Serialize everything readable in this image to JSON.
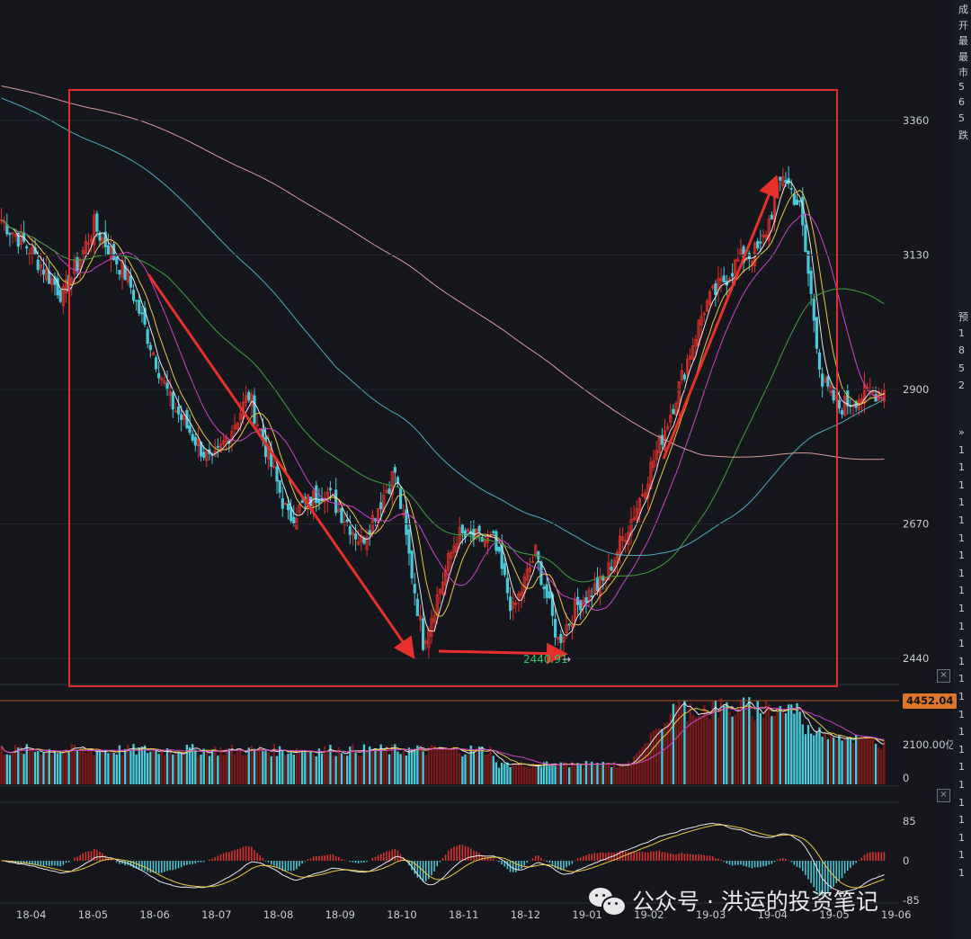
{
  "chart_data": [
    {
      "type": "candlestick",
      "panel": "price",
      "title": "",
      "x_ticks": [
        "18-04",
        "18-05",
        "18-06",
        "18-07",
        "18-08",
        "18-09",
        "18-10",
        "18-11",
        "18-12",
        "19-01",
        "19-02",
        "19-03",
        "19-04",
        "19-05",
        "19-06"
      ],
      "y_ticks": [
        "3360",
        "3130",
        "2900",
        "2670",
        "2440"
      ],
      "ylim": [
        2410,
        3480
      ],
      "annotation_low": "2440.91",
      "annotation_low_arrow": "→",
      "close_waypoints": [
        [
          0,
          3190
        ],
        [
          10,
          3140
        ],
        [
          22,
          3060
        ],
        [
          33,
          3180
        ],
        [
          45,
          3090
        ],
        [
          60,
          2880
        ],
        [
          75,
          2770
        ],
        [
          88,
          2890
        ],
        [
          102,
          2680
        ],
        [
          115,
          2730
        ],
        [
          128,
          2640
        ],
        [
          140,
          2760
        ],
        [
          150,
          2470
        ],
        [
          162,
          2650
        ],
        [
          175,
          2640
        ],
        [
          182,
          2520
        ],
        [
          190,
          2620
        ],
        [
          198,
          2470
        ],
        [
          206,
          2540
        ],
        [
          214,
          2570
        ],
        [
          226,
          2700
        ],
        [
          238,
          2860
        ],
        [
          250,
          3040
        ],
        [
          262,
          3120
        ],
        [
          270,
          3140
        ],
        [
          278,
          3270
        ],
        [
          284,
          3210
        ],
        [
          292,
          2910
        ],
        [
          298,
          2870
        ],
        [
          306,
          2890
        ],
        [
          314,
          2900
        ]
      ],
      "moving_averages": [
        {
          "label": "MA5",
          "color": "#e8e8e8",
          "period": 5
        },
        {
          "label": "MA10",
          "color": "#e8c840",
          "period": 10
        },
        {
          "label": "MA20",
          "color": "#d040d0",
          "period": 20
        },
        {
          "label": "MA60",
          "color": "#40a040",
          "period": 60
        },
        {
          "label": "MA120",
          "color": "#4aaec0",
          "period": 120
        },
        {
          "label": "MA250",
          "color": "#d89a9a",
          "period": 250
        }
      ],
      "colors": {
        "up": "#e0302a",
        "down": "#49c9d8",
        "highlight_box": "#e0302a",
        "trend_arrow": "#e8302a"
      }
    },
    {
      "type": "bar",
      "panel": "volume",
      "y_ticks": [
        "2100.00亿",
        "0"
      ],
      "current_value_label": "4452.04"
    },
    {
      "type": "macd",
      "panel": "oscillator",
      "y_ticks": [
        "85",
        "0",
        "-85"
      ]
    }
  ],
  "watermark": {
    "text": "公众号 · 洪运的投资笔记",
    "icon": "wechat-icon"
  },
  "side_panel_chars": [
    "成",
    "开",
    "最",
    "最",
    "市",
    "5",
    "6",
    "5",
    "跌",
    "预",
    "1",
    "8",
    "5",
    "2",
    "»",
    "1",
    "1",
    "1",
    "1",
    "1",
    "1",
    "1",
    "1",
    "1",
    "1",
    "1",
    "1",
    "1",
    "1",
    "1",
    "1",
    "1",
    "1",
    "1",
    "1",
    "1",
    "1",
    "1",
    "1",
    "1"
  ],
  "close_button": "×"
}
